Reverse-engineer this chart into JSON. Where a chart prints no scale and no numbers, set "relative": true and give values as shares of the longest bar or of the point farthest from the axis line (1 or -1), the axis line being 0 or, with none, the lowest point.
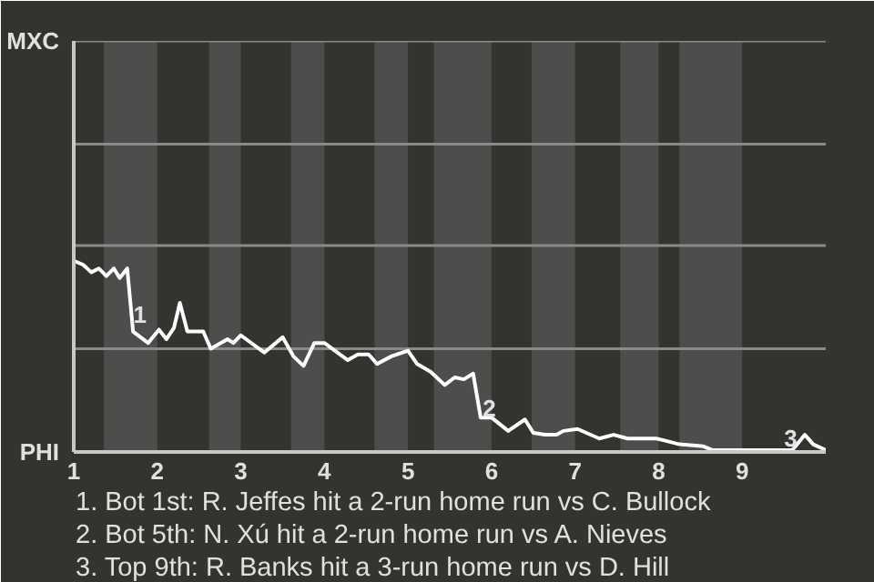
{
  "chart_data": {
    "type": "line",
    "relative": true,
    "x": [
      1.0,
      1.11,
      1.21,
      1.3,
      1.39,
      1.48,
      1.55,
      1.64,
      1.71,
      1.89,
      2.02,
      2.11,
      2.2,
      2.27,
      2.36,
      2.55,
      2.64,
      2.84,
      2.91,
      3.0,
      3.28,
      3.5,
      3.63,
      3.75,
      3.88,
      4.0,
      4.28,
      4.4,
      4.53,
      4.63,
      4.8,
      5.0,
      5.11,
      5.27,
      5.44,
      5.56,
      5.67,
      5.78,
      5.87,
      6.0,
      6.2,
      6.4,
      6.5,
      6.64,
      6.78,
      6.86,
      7.03,
      7.29,
      7.46,
      7.63,
      7.97,
      8.07,
      8.25,
      8.53,
      8.64,
      9.0,
      9.6,
      9.75,
      9.85,
      10.0
    ],
    "series": [
      {
        "color": "#ffffff",
        "values": [
          1,
          0.98,
          0.94,
          0.96,
          0.92,
          0.96,
          0.91,
          0.96,
          0.63,
          0.57,
          0.64,
          0.59,
          0.65,
          0.78,
          0.63,
          0.63,
          0.54,
          0.59,
          0.57,
          0.61,
          0.52,
          0.6,
          0.5,
          0.45,
          0.57,
          0.57,
          0.48,
          0.51,
          0.51,
          0.46,
          0.5,
          0.53,
          0.46,
          0.42,
          0.35,
          0.39,
          0.38,
          0.41,
          0.18,
          0.18,
          0.11,
          0.17,
          0.1,
          0.09,
          0.09,
          0.11,
          0.12,
          0.07,
          0.09,
          0.07,
          0.07,
          0.06,
          0.04,
          0.03,
          0.01,
          0.01,
          0.01,
          0.09,
          0.04,
          0.01
        ]
      }
    ],
    "xlim": [
      1,
      10
    ],
    "xticks": [
      1,
      2,
      3,
      4,
      5,
      6,
      7,
      8,
      9
    ],
    "ref_lines": [
      {
        "axis": "y",
        "value": 0.54,
        "label": null,
        "color": "#8a8a8a"
      },
      {
        "axis": "y",
        "value": 1.08,
        "label": null,
        "color": "#8a8a8a"
      },
      {
        "axis": "y",
        "value": 1.61,
        "label": null,
        "color": "#8a8a8a"
      },
      {
        "axis": "y",
        "value": 2.15,
        "label": "MXC",
        "color": "#8a8a8a"
      }
    ],
    "bands": [
      {
        "axis": "x",
        "from": 1.36,
        "to": 2,
        "color": "#4e4d4b"
      },
      {
        "axis": "x",
        "from": 2.62,
        "to": 3,
        "color": "#4e4d4b"
      },
      {
        "axis": "x",
        "from": 3.6,
        "to": 4,
        "color": "#4e4d4b"
      },
      {
        "axis": "x",
        "from": 4.6,
        "to": 5,
        "color": "#4e4d4b"
      },
      {
        "axis": "x",
        "from": 5.31,
        "to": 6,
        "color": "#4e4d4b"
      },
      {
        "axis": "x",
        "from": 6.48,
        "to": 7,
        "color": "#4e4d4b"
      },
      {
        "axis": "x",
        "from": 7.54,
        "to": 8,
        "color": "#4e4d4b"
      },
      {
        "axis": "x",
        "from": 8.25,
        "to": 9,
        "color": "#4e4d4b"
      }
    ],
    "annotations": [
      {
        "text": "1",
        "x": 1.75,
        "y": 0.72
      },
      {
        "text": "2",
        "x": 5.93,
        "y": 0.23
      },
      {
        "text": "3",
        "x": 9.58,
        "y": 0
      },
      "PHI",
      "1. Bot 1st: R. Jeffes hit a 2-run home run vs C. Bullock",
      "2. Bot 5th: N. Xú hit a 2-run home run vs A. Nieves",
      "3. Top 9th: R. Banks hit a 3-run home run vs D. Hill"
    ]
  }
}
